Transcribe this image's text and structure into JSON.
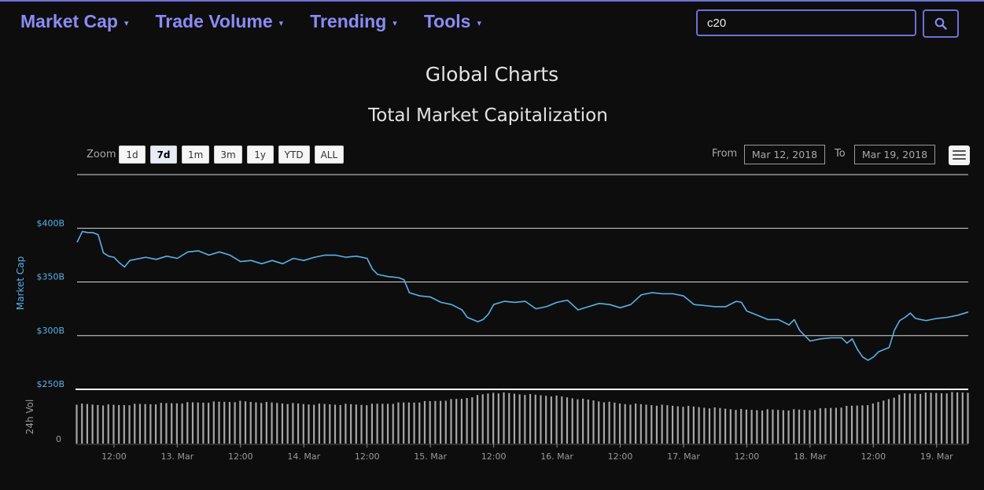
{
  "nav": {
    "items": [
      {
        "label": "Market Cap"
      },
      {
        "label": "Trade Volume"
      },
      {
        "label": "Trending"
      },
      {
        "label": "Tools"
      }
    ]
  },
  "search": {
    "value": "c20",
    "icon": "search-icon"
  },
  "page": {
    "title": "Global Charts"
  },
  "chart_controls": {
    "zoom_label": "Zoom",
    "zoom_buttons": [
      "1d",
      "7d",
      "1m",
      "3m",
      "1y",
      "YTD",
      "ALL"
    ],
    "active_zoom": "7d",
    "from_label": "From",
    "from_value": "Mar 12, 2018",
    "to_label": "To",
    "to_value": "Mar 19, 2018",
    "menu_icon": "hamburger-menu-icon"
  },
  "colors": {
    "accent": "#8b8bf5",
    "line": "#5ab1e6",
    "volume": "#a6a6a6",
    "gridline": "#d8d8d8",
    "background": "#0d0d0e"
  },
  "chart_data": {
    "type": "line",
    "title": "Total Market Capitalization",
    "ylabel": "Market Cap",
    "volume_label": "24h Vol",
    "yticks": [
      {
        "value": 250,
        "label": "$250B"
      },
      {
        "value": 300,
        "label": "$300B"
      },
      {
        "value": 350,
        "label": "$350B"
      },
      {
        "value": 400,
        "label": "$400B"
      }
    ],
    "volume_ticks": [
      {
        "value": 0,
        "label": "0"
      }
    ],
    "ylim": [
      250,
      450
    ],
    "xlim": [
      "Mar 12, 2018 05:00",
      "Mar 19, 2018 06:00"
    ],
    "x_ticks": [
      {
        "label": "12:00",
        "time": "Mar 12, 2018 12:00"
      },
      {
        "label": "13. Mar",
        "time": "Mar 13, 2018 00:00"
      },
      {
        "label": "12:00",
        "time": "Mar 13, 2018 12:00"
      },
      {
        "label": "14. Mar",
        "time": "Mar 14, 2018 00:00"
      },
      {
        "label": "12:00",
        "time": "Mar 14, 2018 12:00"
      },
      {
        "label": "15. Mar",
        "time": "Mar 15, 2018 00:00"
      },
      {
        "label": "12:00",
        "time": "Mar 15, 2018 12:00"
      },
      {
        "label": "16. Mar",
        "time": "Mar 16, 2018 00:00"
      },
      {
        "label": "12:00",
        "time": "Mar 16, 2018 12:00"
      },
      {
        "label": "17. Mar",
        "time": "Mar 17, 2018 00:00"
      },
      {
        "label": "12:00",
        "time": "Mar 17, 2018 12:00"
      },
      {
        "label": "18. Mar",
        "time": "Mar 18, 2018 00:00"
      },
      {
        "label": "12:00",
        "time": "Mar 18, 2018 12:00"
      },
      {
        "label": "19. Mar",
        "time": "Mar 19, 2018 00:00"
      }
    ],
    "series": [
      {
        "points": [
          [
            "Mar 12, 2018 05:00",
            387
          ],
          [
            "Mar 12, 2018 06:00",
            397
          ],
          [
            "Mar 12, 2018 07:00",
            396
          ],
          [
            "Mar 12, 2018 08:00",
            396
          ],
          [
            "Mar 12, 2018 09:00",
            394
          ],
          [
            "Mar 12, 2018 10:00",
            377
          ],
          [
            "Mar 12, 2018 11:00",
            374
          ],
          [
            "Mar 12, 2018 12:00",
            373
          ],
          [
            "Mar 12, 2018 13:00",
            368
          ],
          [
            "Mar 12, 2018 14:00",
            364
          ],
          [
            "Mar 12, 2018 15:00",
            370
          ],
          [
            "Mar 12, 2018 16:00",
            371
          ],
          [
            "Mar 12, 2018 18:00",
            373
          ],
          [
            "Mar 12, 2018 20:00",
            371
          ],
          [
            "Mar 12, 2018 22:00",
            374
          ],
          [
            "Mar 13, 2018 00:00",
            372
          ],
          [
            "Mar 13, 2018 02:00",
            378
          ],
          [
            "Mar 13, 2018 04:00",
            379
          ],
          [
            "Mar 13, 2018 06:00",
            375
          ],
          [
            "Mar 13, 2018 08:00",
            378
          ],
          [
            "Mar 13, 2018 10:00",
            375
          ],
          [
            "Mar 13, 2018 12:00",
            369
          ],
          [
            "Mar 13, 2018 14:00",
            370
          ],
          [
            "Mar 13, 2018 16:00",
            367
          ],
          [
            "Mar 13, 2018 18:00",
            370
          ],
          [
            "Mar 13, 2018 20:00",
            367
          ],
          [
            "Mar 13, 2018 22:00",
            372
          ],
          [
            "Mar 14, 2018 00:00",
            370
          ],
          [
            "Mar 14, 2018 02:00",
            373
          ],
          [
            "Mar 14, 2018 04:00",
            375
          ],
          [
            "Mar 14, 2018 06:00",
            375
          ],
          [
            "Mar 14, 2018 08:00",
            373
          ],
          [
            "Mar 14, 2018 10:00",
            374
          ],
          [
            "Mar 14, 2018 12:00",
            372
          ],
          [
            "Mar 14, 2018 13:00",
            362
          ],
          [
            "Mar 14, 2018 14:00",
            357
          ],
          [
            "Mar 14, 2018 16:00",
            355
          ],
          [
            "Mar 14, 2018 18:00",
            354
          ],
          [
            "Mar 14, 2018 19:00",
            352
          ],
          [
            "Mar 14, 2018 20:00",
            340
          ],
          [
            "Mar 14, 2018 22:00",
            337
          ],
          [
            "Mar 15, 2018 00:00",
            336
          ],
          [
            "Mar 15, 2018 02:00",
            331
          ],
          [
            "Mar 15, 2018 04:00",
            329
          ],
          [
            "Mar 15, 2018 06:00",
            324
          ],
          [
            "Mar 15, 2018 07:00",
            317
          ],
          [
            "Mar 15, 2018 08:00",
            315
          ],
          [
            "Mar 15, 2018 09:00",
            313
          ],
          [
            "Mar 15, 2018 10:00",
            315
          ],
          [
            "Mar 15, 2018 11:00",
            320
          ],
          [
            "Mar 15, 2018 12:00",
            329
          ],
          [
            "Mar 15, 2018 14:00",
            332
          ],
          [
            "Mar 15, 2018 16:00",
            331
          ],
          [
            "Mar 15, 2018 18:00",
            332
          ],
          [
            "Mar 15, 2018 20:00",
            325
          ],
          [
            "Mar 15, 2018 22:00",
            327
          ],
          [
            "Mar 16, 2018 00:00",
            331
          ],
          [
            "Mar 16, 2018 02:00",
            333
          ],
          [
            "Mar 16, 2018 04:00",
            324
          ],
          [
            "Mar 16, 2018 06:00",
            327
          ],
          [
            "Mar 16, 2018 08:00",
            330
          ],
          [
            "Mar 16, 2018 10:00",
            329
          ],
          [
            "Mar 16, 2018 12:00",
            326
          ],
          [
            "Mar 16, 2018 14:00",
            329
          ],
          [
            "Mar 16, 2018 16:00",
            338
          ],
          [
            "Mar 16, 2018 18:00",
            340
          ],
          [
            "Mar 16, 2018 20:00",
            339
          ],
          [
            "Mar 16, 2018 22:00",
            339
          ],
          [
            "Mar 17, 2018 00:00",
            337
          ],
          [
            "Mar 17, 2018 02:00",
            329
          ],
          [
            "Mar 17, 2018 04:00",
            328
          ],
          [
            "Mar 17, 2018 06:00",
            327
          ],
          [
            "Mar 17, 2018 08:00",
            327
          ],
          [
            "Mar 17, 2018 10:00",
            332
          ],
          [
            "Mar 17, 2018 11:00",
            331
          ],
          [
            "Mar 17, 2018 12:00",
            323
          ],
          [
            "Mar 17, 2018 14:00",
            319
          ],
          [
            "Mar 17, 2018 16:00",
            315
          ],
          [
            "Mar 17, 2018 18:00",
            315
          ],
          [
            "Mar 17, 2018 20:00",
            310
          ],
          [
            "Mar 17, 2018 21:00",
            315
          ],
          [
            "Mar 17, 2018 22:00",
            305
          ],
          [
            "Mar 18, 2018 00:00",
            295
          ],
          [
            "Mar 18, 2018 02:00",
            297
          ],
          [
            "Mar 18, 2018 04:00",
            298
          ],
          [
            "Mar 18, 2018 06:00",
            298
          ],
          [
            "Mar 18, 2018 07:00",
            293
          ],
          [
            "Mar 18, 2018 08:00",
            297
          ],
          [
            "Mar 18, 2018 09:00",
            287
          ],
          [
            "Mar 18, 2018 10:00",
            280
          ],
          [
            "Mar 18, 2018 11:00",
            277
          ],
          [
            "Mar 18, 2018 12:00",
            280
          ],
          [
            "Mar 18, 2018 13:00",
            285
          ],
          [
            "Mar 18, 2018 14:00",
            287
          ],
          [
            "Mar 18, 2018 15:00",
            289
          ],
          [
            "Mar 18, 2018 16:00",
            305
          ],
          [
            "Mar 18, 2018 17:00",
            314
          ],
          [
            "Mar 18, 2018 18:00",
            317
          ],
          [
            "Mar 18, 2018 19:00",
            321
          ],
          [
            "Mar 18, 2018 20:00",
            316
          ],
          [
            "Mar 18, 2018 21:00",
            315
          ],
          [
            "Mar 18, 2018 22:00",
            314
          ],
          [
            "Mar 19, 2018 00:00",
            316
          ],
          [
            "Mar 19, 2018 02:00",
            317
          ],
          [
            "Mar 19, 2018 04:00",
            319
          ],
          [
            "Mar 19, 2018 06:00",
            322
          ]
        ]
      }
    ],
    "volume": [
      [
        "Mar 12, 2018 05:00",
        15.0
      ],
      [
        "Mar 12, 2018 12:00",
        14.6
      ],
      [
        "Mar 13, 2018 00:00",
        15.4
      ],
      [
        "Mar 13, 2018 12:00",
        16.0
      ],
      [
        "Mar 14, 2018 00:00",
        15.0
      ],
      [
        "Mar 14, 2018 12:00",
        14.8
      ],
      [
        "Mar 15, 2018 00:00",
        16.0
      ],
      [
        "Mar 15, 2018 06:00",
        17.0
      ],
      [
        "Mar 15, 2018 12:00",
        19.4
      ],
      [
        "Mar 16, 2018 00:00",
        18.0
      ],
      [
        "Mar 16, 2018 12:00",
        15.2
      ],
      [
        "Mar 17, 2018 00:00",
        14.2
      ],
      [
        "Mar 17, 2018 12:00",
        12.8
      ],
      [
        "Mar 18, 2018 00:00",
        12.8
      ],
      [
        "Mar 18, 2018 12:00",
        15.0
      ],
      [
        "Mar 18, 2018 18:00",
        19.0
      ],
      [
        "Mar 19, 2018 06:00",
        19.4
      ]
    ],
    "volume_ylim": [
      0,
      20
    ],
    "grid": true,
    "legend": "none"
  }
}
